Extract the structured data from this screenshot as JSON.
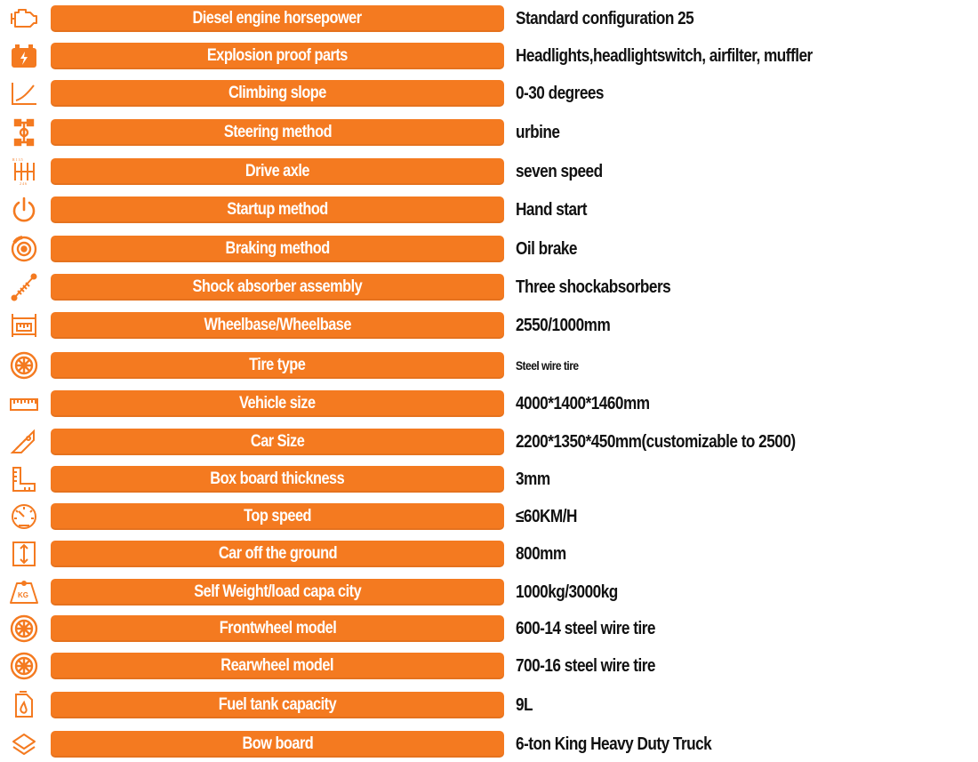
{
  "accent_color": "#f47a20",
  "rows": [
    {
      "label": "Diesel engine horsepower",
      "value": "Standard configuration 25",
      "icon": "engine-icon"
    },
    {
      "label": "Explosion proof parts",
      "value": "Headlights,headlightswitch, airfilter, muffler",
      "icon": "battery-icon"
    },
    {
      "label": "Climbing slope",
      "value": "0-30 degrees",
      "icon": "slope-chart-icon"
    },
    {
      "label": "Steering method",
      "value": "urbine",
      "icon": "axle-steering-icon"
    },
    {
      "label": "Drive axle",
      "value": "seven speed",
      "icon": "gearbox-icon"
    },
    {
      "label": "Startup method",
      "value": "Hand start",
      "icon": "power-icon"
    },
    {
      "label": "Braking method",
      "value": "Oil brake",
      "icon": "brake-disc-icon"
    },
    {
      "label": "Shock absorber assembly",
      "value": "Three shockabsorbers",
      "icon": "shock-absorber-icon"
    },
    {
      "label": "Wheelbase/Wheelbase",
      "value": "2550/1000mm",
      "icon": "wheelbase-icon"
    },
    {
      "label": "Tire type",
      "value": "Steel wire tire",
      "icon": "tire-icon"
    },
    {
      "label": "Vehicle size",
      "value": "4000*1400*1460mm",
      "icon": "ruler-icon"
    },
    {
      "label": "Car Size",
      "value": "2200*1350*450mm(customizable to 2500)",
      "icon": "set-square-icon"
    },
    {
      "label": "Box board thickness",
      "value": "3mm",
      "icon": "l-ruler-icon"
    },
    {
      "label": "Top speed",
      "value": "≤60KM/H",
      "icon": "speedometer-icon"
    },
    {
      "label": "Car off the ground",
      "value": "800mm",
      "icon": "ground-clearance-icon"
    },
    {
      "label": "Self  Weight/load capa city",
      "value": "1000kg/3000kg",
      "icon": "weight-kg-icon",
      "icon_text": "KG"
    },
    {
      "label": "Frontwheel model",
      "value": "600-14 steel wire tire",
      "icon": "tire-icon"
    },
    {
      "label": "Rearwheel model",
      "value": "700-16 steel wire tire",
      "icon": "tire-icon"
    },
    {
      "label": "Fuel tank capacity",
      "value": "9L",
      "icon": "fuel-tank-icon"
    },
    {
      "label": "Bow board",
      "value": "6-ton King Heavy Duty Truck",
      "icon": "layers-icon"
    }
  ]
}
